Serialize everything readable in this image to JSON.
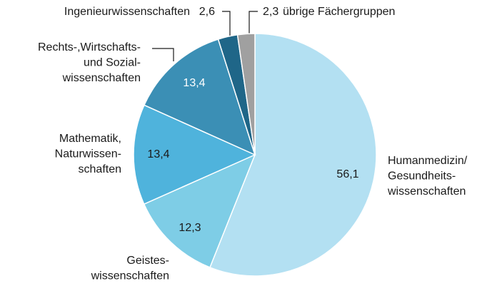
{
  "chart_data": {
    "type": "pie",
    "categories": [
      "Humanmedizin/\nGesundheits-\nwissenschaften",
      "Geistes-\nwissenschaften",
      "Mathematik,\nNaturwissen-\nschaften",
      "Rechts-,Wirtschafts-\nund Sozial-\nwissenschaften",
      "Ingenieurwissenschaften",
      "übrige Fächergruppen"
    ],
    "values": [
      56.1,
      12.3,
      13.4,
      13.4,
      2.6,
      2.3
    ],
    "value_labels": [
      "56,1",
      "12,3",
      "13,4",
      "13,4",
      "2,6",
      "2,3"
    ],
    "colors": [
      "#b3e0f2",
      "#7ecde6",
      "#4fb3dc",
      "#3b8fb5",
      "#1f6688",
      "#a0a0a0"
    ]
  }
}
